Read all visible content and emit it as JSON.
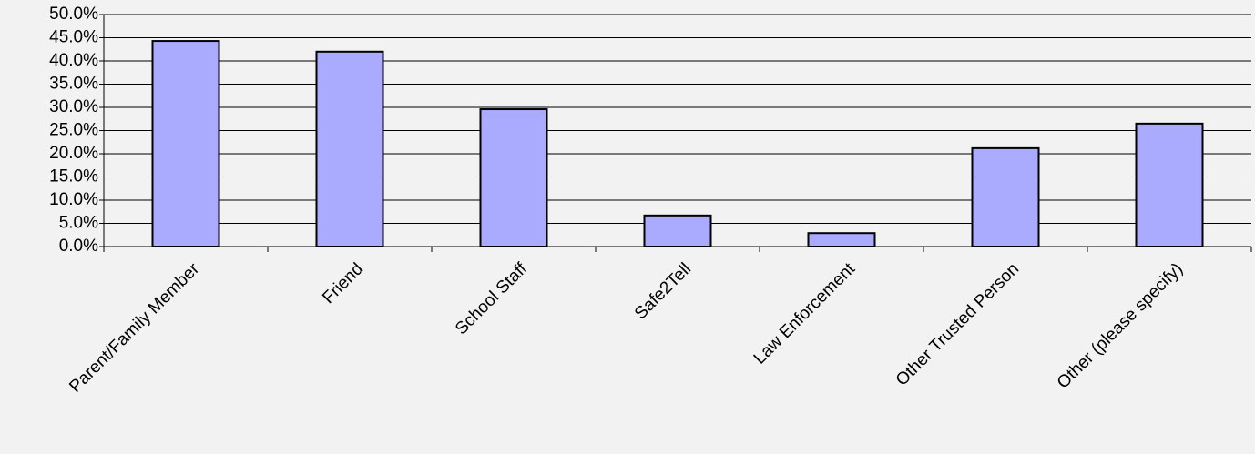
{
  "chart_data": {
    "type": "bar",
    "categories": [
      "Parent/Family Member",
      "Friend",
      "School Staff",
      "Safe2Tell",
      "Law Enforcement",
      "Other Trusted Person",
      "Other (please specify)"
    ],
    "values": [
      44.3,
      42.0,
      29.6,
      6.7,
      2.9,
      21.2,
      26.5
    ],
    "color": "#aaaaff",
    "ylim": [
      0,
      50
    ],
    "yticks": [
      {
        "value": 0,
        "label": "0.0%"
      },
      {
        "value": 5,
        "label": "5.0%"
      },
      {
        "value": 10,
        "label": "10.0%"
      },
      {
        "value": 15,
        "label": "15.0%"
      },
      {
        "value": 20,
        "label": "20.0%"
      },
      {
        "value": 25,
        "label": "25.0%"
      },
      {
        "value": 30,
        "label": "30.0%"
      },
      {
        "value": 35,
        "label": "35.0%"
      },
      {
        "value": 40,
        "label": "40.0%"
      },
      {
        "value": 45,
        "label": "45.0%"
      },
      {
        "value": 50,
        "label": "50.0%"
      }
    ],
    "grid": true
  }
}
